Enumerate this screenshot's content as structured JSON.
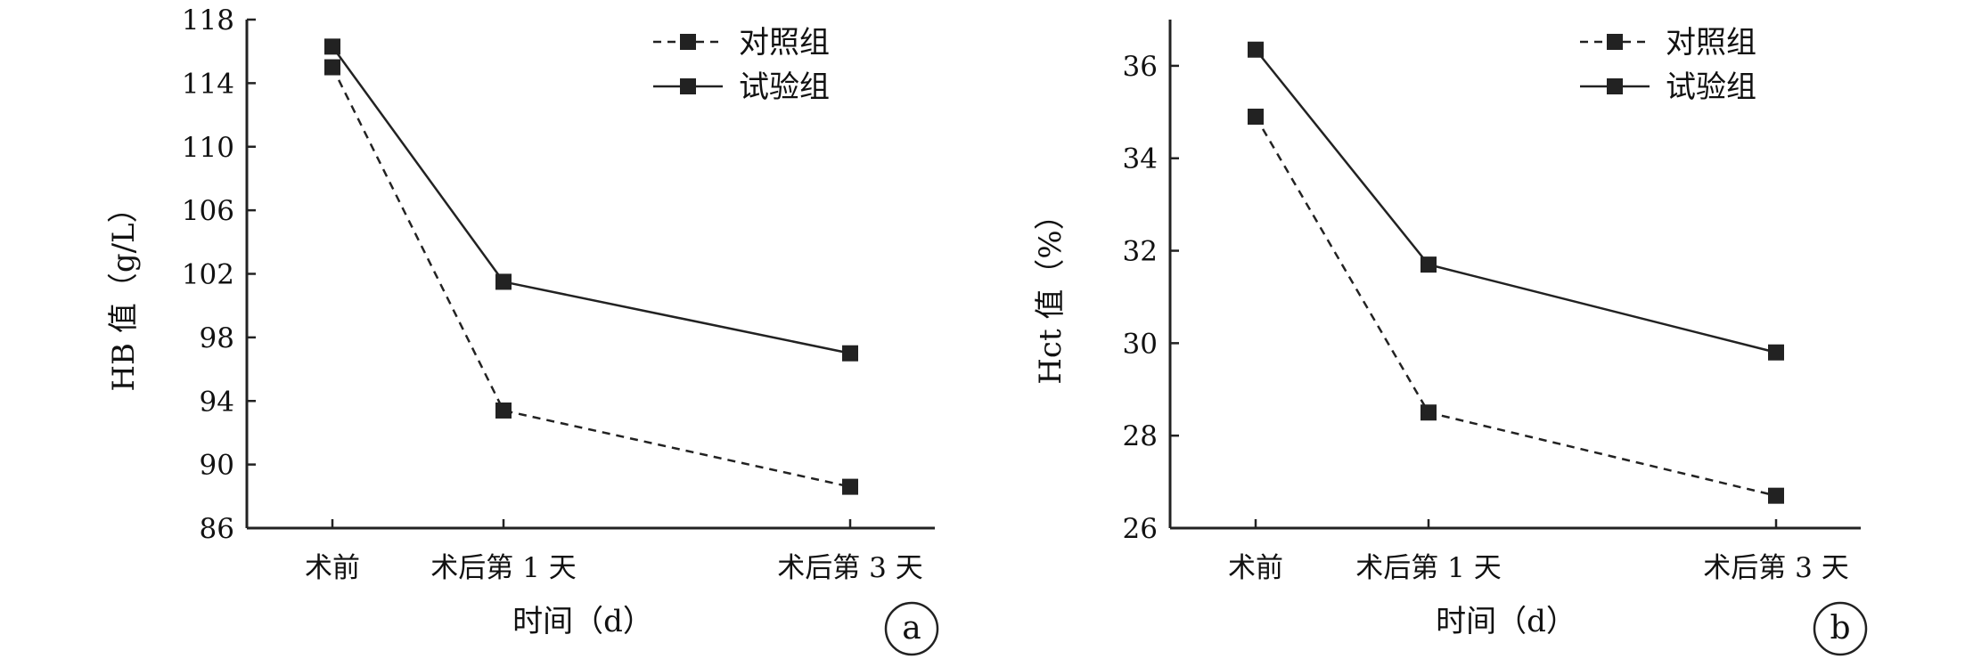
{
  "chart_data": [
    {
      "type": "line",
      "panel_label": "a",
      "categories": [
        "术前",
        "术后第 1 天",
        "术后第 3 天"
      ],
      "x_positions": [
        0,
        1,
        3
      ],
      "xlabel": "时间（d）",
      "ylabel": "HB 值（g/L）",
      "ylim": [
        86,
        118
      ],
      "yticks": [
        86,
        90,
        94,
        98,
        102,
        106,
        110,
        114,
        118
      ],
      "legend_position": "top-right",
      "series": [
        {
          "name": "对照组",
          "line_style": "dashed",
          "marker": "square",
          "color": "#222222",
          "values": [
            115.0,
            93.4,
            88.6
          ]
        },
        {
          "name": "试验组",
          "line_style": "solid",
          "marker": "square",
          "color": "#222222",
          "values": [
            116.3,
            101.5,
            97.0
          ]
        }
      ]
    },
    {
      "type": "line",
      "panel_label": "b",
      "categories": [
        "术前",
        "术后第 1 天",
        "术后第 3 天"
      ],
      "x_positions": [
        0,
        1,
        3
      ],
      "xlabel": "时间（d）",
      "ylabel": "Hct 值（%）",
      "ylim": [
        26,
        37
      ],
      "yticks": [
        26,
        28,
        30,
        32,
        34,
        36
      ],
      "legend_position": "top-right",
      "series": [
        {
          "name": "对照组",
          "line_style": "dashed",
          "marker": "square",
          "color": "#222222",
          "values": [
            34.9,
            28.5,
            26.7
          ]
        },
        {
          "name": "试验组",
          "line_style": "solid",
          "marker": "square",
          "color": "#222222",
          "values": [
            36.35,
            31.7,
            29.8
          ]
        }
      ]
    }
  ]
}
